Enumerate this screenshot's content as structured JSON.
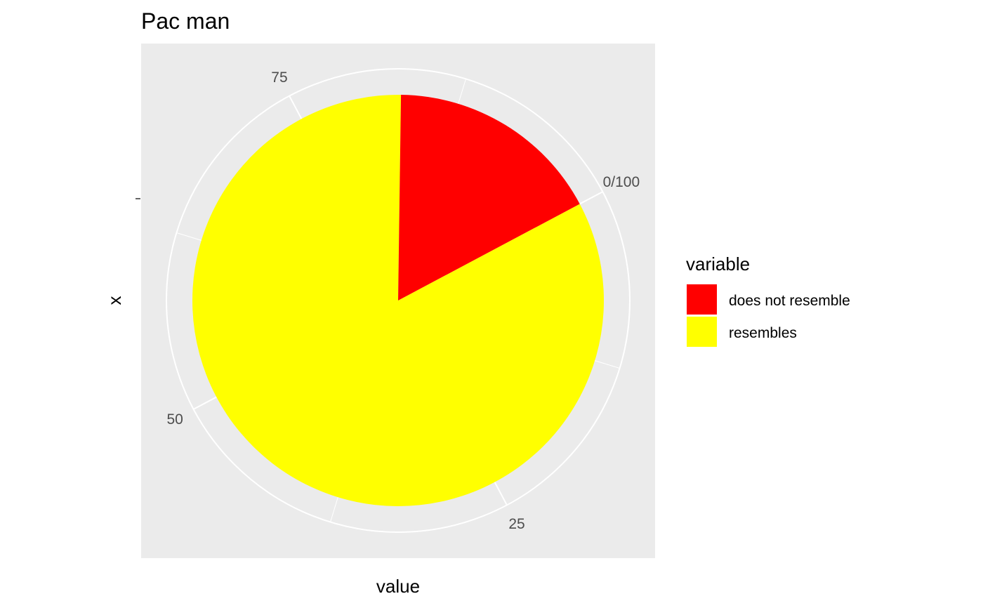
{
  "chart_data": {
    "type": "pie",
    "title": "Pac man",
    "xlabel": "value",
    "ylabel": "x",
    "theta_range": [
      0,
      100
    ],
    "theta_ticks": [
      "0/100",
      "25",
      "50",
      "75"
    ],
    "series": [
      {
        "name": "does not resemble",
        "value": 17,
        "color": "#FF0000"
      },
      {
        "name": "resembles",
        "value": 83,
        "color": "#FFFF00"
      }
    ],
    "legend": {
      "title": "variable",
      "placement": "right"
    },
    "panel_background": "#EBEBEB",
    "grid": true
  }
}
